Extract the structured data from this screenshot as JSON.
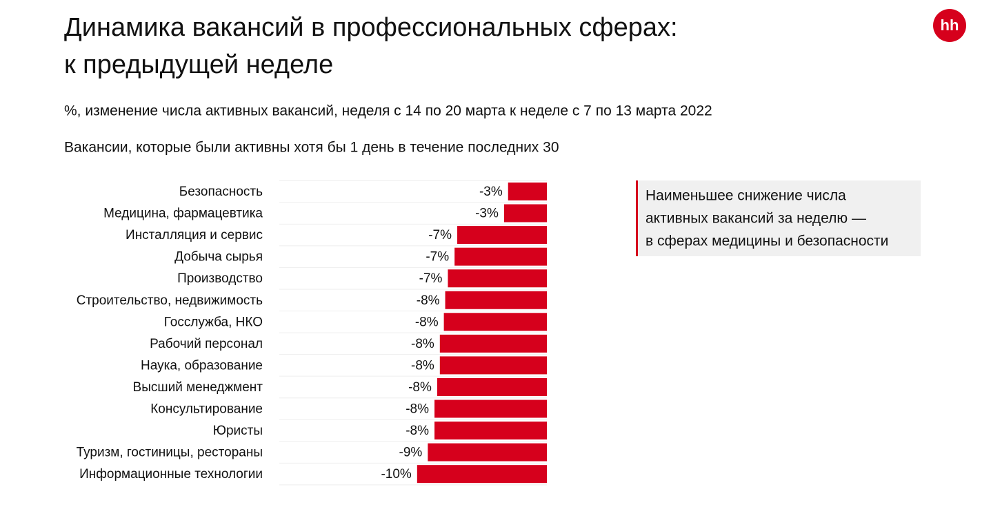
{
  "chart_data": {
    "type": "hbar",
    "title_lines": [
      "Динамика вакансий в профессиональных сферах:",
      "к предыдущей неделе"
    ],
    "subtitle": "%, изменение числа активных вакансий, неделя с 14 по 20 марта к неделе с 7 по 13 марта 2022",
    "note": "Вакансии, которые были активны хотя бы 1 день в течение последних 30",
    "logo": "hh",
    "categories": [
      "Безопасность",
      "Медицина, фармацевтика",
      "Инсталляция и сервис",
      "Добыча сырья",
      "Производство",
      "Строительство, недвижимость",
      "Госслужба, НКО",
      "Рабочий персонал",
      "Наука, образование",
      "Высший менеджмент",
      "Консультирование",
      "Юристы",
      "Туризм, гостиницы, рестораны",
      "Информационные технологии"
    ],
    "values": [
      -2.9,
      -3.2,
      -6.7,
      -6.9,
      -7.4,
      -7.6,
      -7.7,
      -8.0,
      -8.0,
      -8.2,
      -8.4,
      -8.4,
      -8.9,
      -9.7
    ],
    "value_labels": [
      "-3%",
      "-3%",
      "-7%",
      "-7%",
      "-7%",
      "-8%",
      "-8%",
      "-8%",
      "-8%",
      "-8%",
      "-8%",
      "-8%",
      "-9%",
      "-10%"
    ],
    "color": "#d6001c",
    "xlim": [
      -20,
      0
    ],
    "annotation_lines": [
      "Наименьшее снижение числа",
      "активных вакансий за неделю —",
      "в сферах медицины и безопасности"
    ]
  }
}
